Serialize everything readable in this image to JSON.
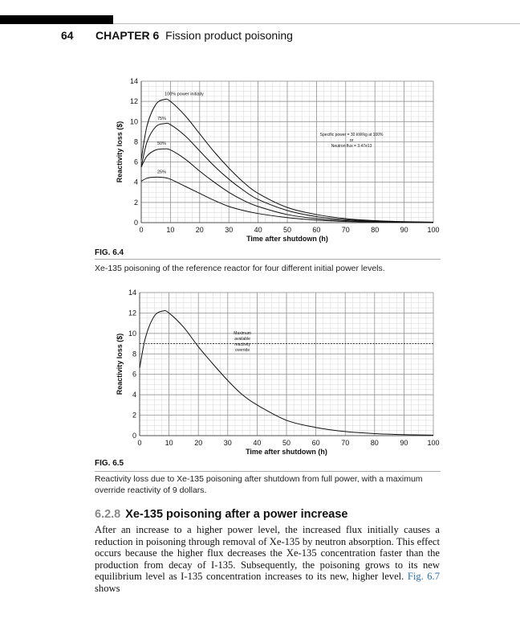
{
  "header": {
    "page_number": "64",
    "chapter_label": "CHAPTER 6",
    "chapter_title": "Fission product poisoning"
  },
  "figures": [
    {
      "label": "FIG. 6.4",
      "caption": "Xe-135 poisoning of the reference reactor for four different initial power levels."
    },
    {
      "label": "FIG. 6.5",
      "caption": "Reactivity loss due to Xe-135 poisoning after shutdown from full power, with a maximum override reactivity of 9 dollars."
    }
  ],
  "section": {
    "number": "6.2.8",
    "title": "Xe-135 poisoning after a power increase"
  },
  "paragraph": {
    "text_before_link": "After an increase to a higher power level, the increased flux initially causes a reduction in poisoning through removal of Xe-135 by neutron absorption. This effect occurs because the higher flux decreases the Xe-135 concentration faster than the production from decay of I-135. Subsequently, the poisoning grows to its new equilibrium level as I-135 concentration increases to its new, higher level.",
    "link": "Fig. 6.7",
    "text_after_link": "shows"
  },
  "chart_data": [
    {
      "type": "line",
      "xlabel": "Time after shutdown (h)",
      "ylabel": "Reactivity loss ($)",
      "xlim": [
        0,
        100
      ],
      "ylim": [
        0,
        14
      ],
      "xticks": [
        "0",
        "10",
        "20",
        "30",
        "40",
        "50",
        "60",
        "70",
        "80",
        "90",
        "100"
      ],
      "yticks": [
        "0",
        "2",
        "4",
        "6",
        "8",
        "10",
        "12",
        "14"
      ],
      "grid": true,
      "x": [
        0,
        2,
        5,
        8,
        10,
        15,
        20,
        25,
        30,
        35,
        40,
        50,
        60,
        70,
        80,
        90,
        100
      ],
      "series": [
        {
          "name": "100% power initially",
          "values": [
            6.2,
            9.6,
            11.7,
            12.2,
            12.0,
            10.6,
            8.8,
            7.0,
            5.4,
            4.0,
            2.9,
            1.5,
            0.8,
            0.4,
            0.2,
            0.1,
            0.05
          ]
        },
        {
          "name": "75%",
          "values": [
            5.5,
            8.0,
            9.5,
            9.8,
            9.7,
            8.6,
            7.1,
            5.6,
            4.3,
            3.2,
            2.3,
            1.2,
            0.6,
            0.3,
            0.15,
            0.07,
            0.03
          ]
        },
        {
          "name": "50%",
          "values": [
            5.5,
            6.6,
            7.2,
            7.3,
            7.2,
            6.3,
            5.1,
            4.0,
            3.0,
            2.2,
            1.6,
            0.8,
            0.4,
            0.2,
            0.1,
            0.05,
            0.02
          ]
        },
        {
          "name": "25%",
          "values": [
            4.1,
            4.4,
            4.5,
            4.45,
            4.3,
            3.6,
            2.9,
            2.2,
            1.6,
            1.2,
            0.9,
            0.5,
            0.25,
            0.12,
            0.06,
            0.03,
            0.01
          ]
        }
      ],
      "annotation": [
        "Specific power = 30 kW/kg at 100%",
        "or",
        "Neutron flux = 3.47e13"
      ]
    },
    {
      "type": "line",
      "xlabel": "Time after shutdown (h)",
      "ylabel": "Reactivity loss ($)",
      "xlim": [
        0,
        100
      ],
      "ylim": [
        0,
        14
      ],
      "xticks": [
        "0",
        "10",
        "20",
        "30",
        "40",
        "50",
        "60",
        "70",
        "80",
        "90",
        "100"
      ],
      "yticks": [
        "0",
        "2",
        "4",
        "6",
        "8",
        "10",
        "12",
        "14"
      ],
      "grid": true,
      "x": [
        0,
        2,
        5,
        8,
        10,
        15,
        20,
        25,
        30,
        35,
        40,
        50,
        60,
        70,
        80,
        90,
        100
      ],
      "series": [
        {
          "values": [
            6.6,
            9.6,
            11.7,
            12.2,
            12.0,
            10.6,
            8.7,
            7.0,
            5.4,
            4.0,
            3.0,
            1.5,
            0.8,
            0.4,
            0.2,
            0.1,
            0.05
          ]
        }
      ],
      "reference_line": {
        "y": 9,
        "style": "dashed",
        "label": [
          "Maximum",
          "available",
          "reactivity",
          "override"
        ]
      }
    }
  ]
}
